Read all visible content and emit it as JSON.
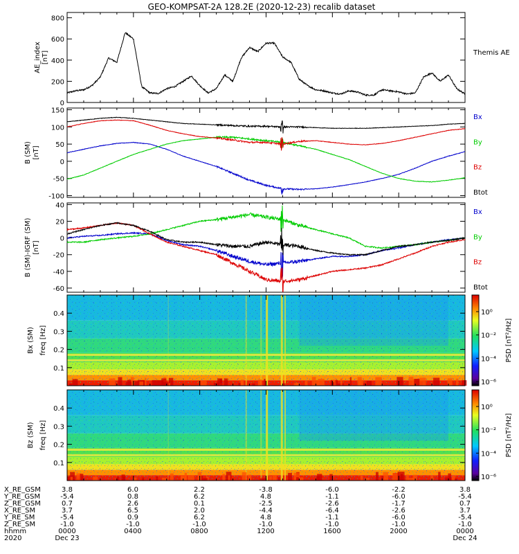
{
  "title": "GEO-KOMPSAT-2A 128.2E (2020-12-23) recalib dataset",
  "colors": {
    "bx": "#0000cc",
    "by": "#00cc00",
    "bz": "#dd0000",
    "btot": "#000000"
  },
  "panels": [
    {
      "id": "ae",
      "ylabel_top": "AE_index",
      "ylabel_unit": "[nT]",
      "yticks": [
        "0",
        "200",
        "400",
        "600",
        "800"
      ],
      "ymin": 0,
      "ymax": 850,
      "legend": [
        {
          "label": "Themis AE",
          "color": "#000000"
        }
      ]
    },
    {
      "id": "b_sm",
      "ylabel_top": "B (SM)",
      "ylabel_unit": "[nT]",
      "yticks": [
        "-100",
        "-50",
        "0",
        "50",
        "100",
        "150"
      ],
      "ymin": -105,
      "ymax": 155,
      "legend": [
        {
          "label": "Bx",
          "color": "#0000cc"
        },
        {
          "label": "By",
          "color": "#00cc00"
        },
        {
          "label": "Bz",
          "color": "#dd0000"
        },
        {
          "label": "Btot",
          "color": "#000000"
        }
      ]
    },
    {
      "id": "b_igrf",
      "ylabel_top": "B (SM)-IGRF (SM)",
      "ylabel_unit": "[nT]",
      "yticks": [
        "-60",
        "-40",
        "-20",
        "0",
        "20",
        "40"
      ],
      "ymin": -65,
      "ymax": 42,
      "legend": [
        {
          "label": "Bx",
          "color": "#0000cc"
        },
        {
          "label": "By",
          "color": "#00cc00"
        },
        {
          "label": "Bz",
          "color": "#dd0000"
        },
        {
          "label": "Btot",
          "color": "#000000"
        }
      ]
    },
    {
      "id": "spec_bx",
      "ylabel_top": "Bx (SM)",
      "ylabel_unit": "freq [Hz]",
      "yticks": [
        "0.1",
        "0.2",
        "0.3",
        "0.4"
      ],
      "colorbar_label": "PSD [nT²/Hz]",
      "colorbar_ticks": [
        "10⁰",
        "10⁻²",
        "10⁻⁴",
        "10⁻⁶"
      ]
    },
    {
      "id": "spec_bz",
      "ylabel_top": "Bz (SM)",
      "ylabel_unit": "freq [Hz]",
      "yticks": [
        "0.1",
        "0.2",
        "0.3",
        "0.4"
      ],
      "colorbar_label": "PSD [nT²/Hz]",
      "colorbar_ticks": [
        "10⁰",
        "10⁻²",
        "10⁻⁴",
        "10⁻⁶"
      ]
    }
  ],
  "ephemeris": {
    "rows": [
      {
        "label": "X_RE_GSM",
        "values": [
          "3.8",
          "6.0",
          "2.2",
          "-3.8",
          "-6.0",
          "-2.2",
          "3.8"
        ]
      },
      {
        "label": "Y_RE_GSM",
        "values": [
          "-5.4",
          "0.8",
          "6.2",
          "4.8",
          "-1.1",
          "-6.0",
          "-5.4"
        ]
      },
      {
        "label": "Z_RE_GSM",
        "values": [
          "0.7",
          "2.6",
          "0.1",
          "-2.5",
          "-2.6",
          "-1.7",
          "0.7"
        ]
      },
      {
        "label": "X_RE_SM",
        "values": [
          "3.7",
          "6.5",
          "2.0",
          "-4.4",
          "-6.4",
          "-2.6",
          "3.7"
        ]
      },
      {
        "label": "Y_RE_SM",
        "values": [
          "-5.4",
          "0.9",
          "6.2",
          "4.8",
          "-1.1",
          "-6.0",
          "-5.4"
        ]
      },
      {
        "label": "Z_RE_SM",
        "values": [
          "-1.0",
          "-1.0",
          "-1.0",
          "-1.0",
          "-1.0",
          "-1.0",
          "-1.0"
        ]
      },
      {
        "label": "hhmm",
        "values": [
          "0000",
          "0400",
          "0800",
          "1200",
          "1600",
          "2000",
          "0000"
        ]
      },
      {
        "label": "2020",
        "values": [
          "Dec 23",
          "",
          "",
          "",
          "",
          "",
          "Dec 24"
        ]
      }
    ]
  },
  "chart_data": [
    {
      "type": "line",
      "title": "Themis AE",
      "ylabel": "AE_index [nT]",
      "ylim": [
        0,
        850
      ],
      "x": [
        0,
        0.5,
        1,
        1.5,
        2,
        2.5,
        3,
        3.5,
        4,
        4.5,
        5,
        5.5,
        6,
        6.5,
        7,
        7.5,
        8,
        8.5,
        9,
        9.5,
        10,
        10.5,
        11,
        11.5,
        12,
        12.5,
        13,
        13.5,
        14,
        14.5,
        15,
        15.5,
        16,
        16.5,
        17,
        17.5,
        18,
        18.5,
        19,
        19.5,
        20,
        20.5,
        21,
        21.5,
        22,
        22.5,
        23,
        23.5,
        24
      ],
      "series": [
        {
          "name": "Themis AE",
          "values": [
            90,
            110,
            120,
            160,
            240,
            420,
            380,
            660,
            600,
            150,
            90,
            85,
            130,
            150,
            200,
            250,
            160,
            90,
            130,
            260,
            200,
            420,
            520,
            480,
            560,
            560,
            430,
            380,
            220,
            160,
            120,
            110,
            90,
            80,
            110,
            100,
            70,
            70,
            120,
            110,
            100,
            80,
            90,
            240,
            280,
            200,
            260,
            130,
            80
          ]
        }
      ]
    },
    {
      "type": "line",
      "title": "B (SM)",
      "ylabel": "B (SM) [nT]",
      "ylim": [
        -105,
        155
      ],
      "x": [
        0,
        1,
        2,
        3,
        4,
        5,
        6,
        7,
        8,
        9,
        10,
        11,
        12,
        13,
        14,
        15,
        16,
        17,
        18,
        19,
        20,
        21,
        22,
        23,
        24
      ],
      "series": [
        {
          "name": "Bx",
          "values": [
            25,
            35,
            45,
            52,
            55,
            50,
            35,
            15,
            0,
            -15,
            -35,
            -55,
            -70,
            -80,
            -82,
            -80,
            -75,
            -68,
            -60,
            -50,
            -38,
            -20,
            0,
            15,
            28
          ]
        },
        {
          "name": "By",
          "values": [
            -52,
            -40,
            -20,
            0,
            20,
            35,
            50,
            60,
            65,
            70,
            70,
            65,
            60,
            55,
            45,
            35,
            20,
            5,
            -15,
            -35,
            -50,
            -58,
            -60,
            -55,
            -48
          ]
        },
        {
          "name": "Bz",
          "values": [
            100,
            110,
            118,
            120,
            118,
            105,
            90,
            80,
            72,
            68,
            62,
            55,
            55,
            50,
            58,
            60,
            55,
            50,
            48,
            52,
            60,
            70,
            80,
            90,
            95
          ]
        },
        {
          "name": "Btot",
          "values": [
            115,
            120,
            125,
            128,
            125,
            120,
            115,
            110,
            108,
            106,
            104,
            102,
            102,
            100,
            100,
            98,
            96,
            96,
            96,
            98,
            100,
            102,
            104,
            108,
            110
          ]
        }
      ]
    },
    {
      "type": "line",
      "title": "B (SM)-IGRF (SM)",
      "ylabel": "B (SM)-IGRF (SM) [nT]",
      "ylim": [
        -65,
        42
      ],
      "x": [
        0,
        1,
        2,
        3,
        4,
        5,
        6,
        7,
        8,
        9,
        10,
        11,
        12,
        13,
        14,
        15,
        16,
        17,
        18,
        19,
        20,
        21,
        22,
        23,
        24
      ],
      "series": [
        {
          "name": "Bx",
          "values": [
            0,
            2,
            3,
            5,
            6,
            5,
            -3,
            -8,
            -10,
            -15,
            -22,
            -28,
            -32,
            -30,
            -28,
            -25,
            -22,
            -22,
            -20,
            -15,
            -12,
            -8,
            -5,
            -2,
            0
          ]
        },
        {
          "name": "By",
          "values": [
            -5,
            -5,
            -2,
            0,
            2,
            5,
            10,
            15,
            20,
            22,
            25,
            28,
            25,
            22,
            15,
            10,
            5,
            0,
            -10,
            -12,
            -10,
            -8,
            -5,
            -3,
            0
          ]
        },
        {
          "name": "Bz",
          "values": [
            10,
            12,
            15,
            18,
            15,
            5,
            -5,
            -10,
            -15,
            -20,
            -30,
            -40,
            -50,
            -52,
            -50,
            -45,
            -40,
            -38,
            -36,
            -32,
            -25,
            -18,
            -10,
            -5,
            -2
          ]
        },
        {
          "name": "Btot",
          "values": [
            5,
            10,
            15,
            18,
            15,
            8,
            -2,
            -5,
            -5,
            -8,
            -10,
            -10,
            -5,
            -8,
            -10,
            -15,
            -18,
            -20,
            -20,
            -15,
            -10,
            -8,
            -5,
            -3,
            0
          ]
        }
      ]
    }
  ]
}
